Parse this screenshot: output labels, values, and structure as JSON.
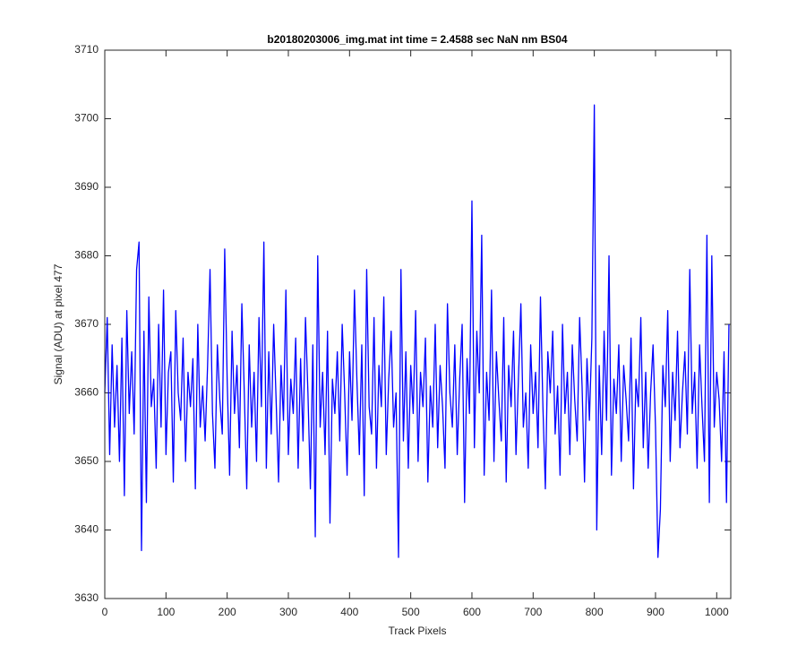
{
  "chart_data": {
    "type": "line",
    "title": "b20180203006_img.mat int time = 2.4588 sec  NaN nm BS04",
    "x_label": "Track Pixels",
    "y_label": "Signal (ADU) at pixel 477",
    "xlim": [
      0,
      1023
    ],
    "ylim": [
      3630,
      3710
    ],
    "xticks": [
      0,
      100,
      200,
      300,
      400,
      500,
      600,
      700,
      800,
      900,
      1000
    ],
    "yticks": [
      3630,
      3640,
      3650,
      3660,
      3670,
      3680,
      3690,
      3700,
      3710
    ],
    "grid": false,
    "series": [
      {
        "name": "signal",
        "color": "#0000ff",
        "x": [
          0,
          4,
          8,
          12,
          16,
          20,
          24,
          28,
          32,
          36,
          40,
          44,
          48,
          52,
          56,
          60,
          64,
          68,
          72,
          76,
          80,
          84,
          88,
          92,
          96,
          100,
          104,
          108,
          112,
          116,
          120,
          124,
          128,
          132,
          136,
          140,
          144,
          148,
          152,
          156,
          160,
          164,
          168,
          172,
          176,
          180,
          184,
          188,
          192,
          196,
          200,
          204,
          208,
          212,
          216,
          220,
          224,
          228,
          232,
          236,
          240,
          244,
          248,
          252,
          256,
          260,
          264,
          268,
          272,
          276,
          280,
          284,
          288,
          292,
          296,
          300,
          304,
          308,
          312,
          316,
          320,
          324,
          328,
          332,
          336,
          340,
          344,
          348,
          352,
          356,
          360,
          364,
          368,
          372,
          376,
          380,
          384,
          388,
          392,
          396,
          400,
          404,
          408,
          412,
          416,
          420,
          424,
          428,
          432,
          436,
          440,
          444,
          448,
          452,
          456,
          460,
          464,
          468,
          472,
          476,
          480,
          484,
          488,
          492,
          496,
          500,
          504,
          508,
          512,
          516,
          520,
          524,
          528,
          532,
          536,
          540,
          544,
          548,
          552,
          556,
          560,
          564,
          568,
          572,
          576,
          580,
          584,
          588,
          592,
          596,
          600,
          604,
          608,
          612,
          616,
          620,
          624,
          628,
          632,
          636,
          640,
          644,
          648,
          652,
          656,
          660,
          664,
          668,
          672,
          676,
          680,
          684,
          688,
          692,
          696,
          700,
          704,
          708,
          712,
          716,
          720,
          724,
          728,
          732,
          736,
          740,
          744,
          748,
          752,
          756,
          760,
          764,
          768,
          772,
          776,
          780,
          784,
          788,
          792,
          796,
          800,
          804,
          808,
          812,
          816,
          820,
          824,
          828,
          832,
          836,
          840,
          844,
          848,
          852,
          856,
          860,
          864,
          868,
          872,
          876,
          880,
          884,
          888,
          892,
          896,
          900,
          904,
          908,
          912,
          916,
          920,
          924,
          928,
          932,
          936,
          940,
          944,
          948,
          952,
          956,
          960,
          964,
          968,
          972,
          976,
          980,
          984,
          988,
          992,
          996,
          1000,
          1004,
          1008,
          1012,
          1016,
          1020
        ],
        "values": [
          3660,
          3671,
          3651,
          3667,
          3655,
          3664,
          3650,
          3668,
          3645,
          3672,
          3657,
          3666,
          3654,
          3678,
          3682,
          3637,
          3669,
          3644,
          3674,
          3658,
          3662,
          3649,
          3670,
          3655,
          3675,
          3651,
          3663,
          3666,
          3647,
          3672,
          3660,
          3656,
          3668,
          3650,
          3663,
          3658,
          3665,
          3646,
          3670,
          3655,
          3661,
          3653,
          3664,
          3678,
          3657,
          3649,
          3667,
          3659,
          3654,
          3681,
          3662,
          3648,
          3669,
          3657,
          3664,
          3652,
          3673,
          3660,
          3646,
          3667,
          3655,
          3663,
          3650,
          3671,
          3658,
          3682,
          3649,
          3666,
          3654,
          3670,
          3659,
          3647,
          3664,
          3656,
          3675,
          3651,
          3662,
          3657,
          3668,
          3649,
          3665,
          3653,
          3671,
          3660,
          3646,
          3667,
          3639,
          3680,
          3655,
          3663,
          3651,
          3669,
          3641,
          3662,
          3657,
          3666,
          3653,
          3670,
          3660,
          3648,
          3666,
          3656,
          3675,
          3662,
          3651,
          3667,
          3645,
          3678,
          3658,
          3654,
          3671,
          3649,
          3664,
          3658,
          3674,
          3651,
          3662,
          3669,
          3655,
          3660,
          3636,
          3678,
          3653,
          3666,
          3649,
          3664,
          3657,
          3672,
          3650,
          3663,
          3658,
          3668,
          3647,
          3661,
          3655,
          3670,
          3652,
          3664,
          3658,
          3649,
          3673,
          3660,
          3655,
          3667,
          3651,
          3662,
          3670,
          3644,
          3665,
          3657,
          3688,
          3652,
          3669,
          3660,
          3683,
          3648,
          3663,
          3656,
          3675,
          3650,
          3666,
          3659,
          3653,
          3671,
          3647,
          3664,
          3658,
          3669,
          3651,
          3662,
          3673,
          3655,
          3660,
          3649,
          3667,
          3657,
          3663,
          3652,
          3674,
          3658,
          3646,
          3666,
          3660,
          3669,
          3654,
          3661,
          3648,
          3670,
          3657,
          3663,
          3651,
          3667,
          3659,
          3653,
          3671,
          3661,
          3647,
          3665,
          3656,
          3668,
          3702,
          3640,
          3664,
          3651,
          3669,
          3656,
          3680,
          3648,
          3662,
          3657,
          3667,
          3650,
          3664,
          3659,
          3653,
          3668,
          3646,
          3662,
          3658,
          3671,
          3652,
          3663,
          3649,
          3660,
          3667,
          3655,
          3636,
          3643,
          3664,
          3658,
          3672,
          3650,
          3663,
          3656,
          3669,
          3652,
          3660,
          3666,
          3654,
          3678,
          3657,
          3663,
          3649,
          3667,
          3658,
          3650,
          3683,
          3644,
          3680,
          3655,
          3663,
          3659,
          3650,
          3666,
          3644,
          3670
        ]
      }
    ]
  }
}
